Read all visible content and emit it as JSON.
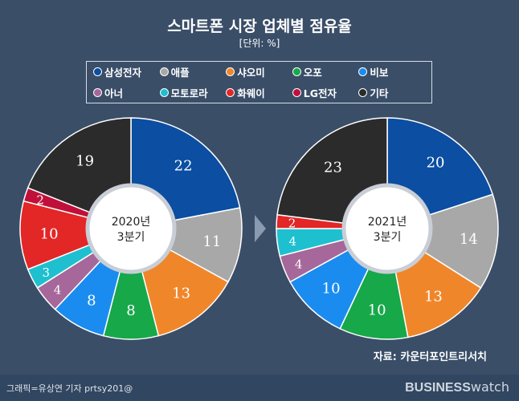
{
  "title": "스마트폰 시장 업체별 점유율",
  "unit": "[단위: %]",
  "source": "자료: 카운터포인트리서치",
  "credit": "그래픽=유상연 기자 prtsy201@",
  "brand": {
    "bold": "BUSINESS",
    "light": "watch"
  },
  "chart_data": {
    "type": "pie",
    "categories": [
      "삼성전자",
      "애플",
      "샤오미",
      "오포",
      "비보",
      "아너",
      "모토로라",
      "화웨이",
      "LG전자",
      "기타"
    ],
    "colors": [
      "#0b4ea2",
      "#a8a8a8",
      "#f0862a",
      "#17a84a",
      "#1a8cf0",
      "#a6679a",
      "#1ec0d0",
      "#e32626",
      "#c0103a",
      "#2b2b2b"
    ],
    "series": [
      {
        "name": "2020년 3분기",
        "label_lines": [
          "2020년",
          "3분기"
        ],
        "values": [
          22,
          11,
          13,
          8,
          8,
          4,
          3,
          10,
          2,
          19
        ]
      },
      {
        "name": "2021년 3분기",
        "label_lines": [
          "2021년",
          "3분기"
        ],
        "values": [
          20,
          14,
          13,
          10,
          10,
          4,
          4,
          2,
          0,
          23
        ]
      }
    ],
    "legend": "top",
    "unit": "%"
  }
}
